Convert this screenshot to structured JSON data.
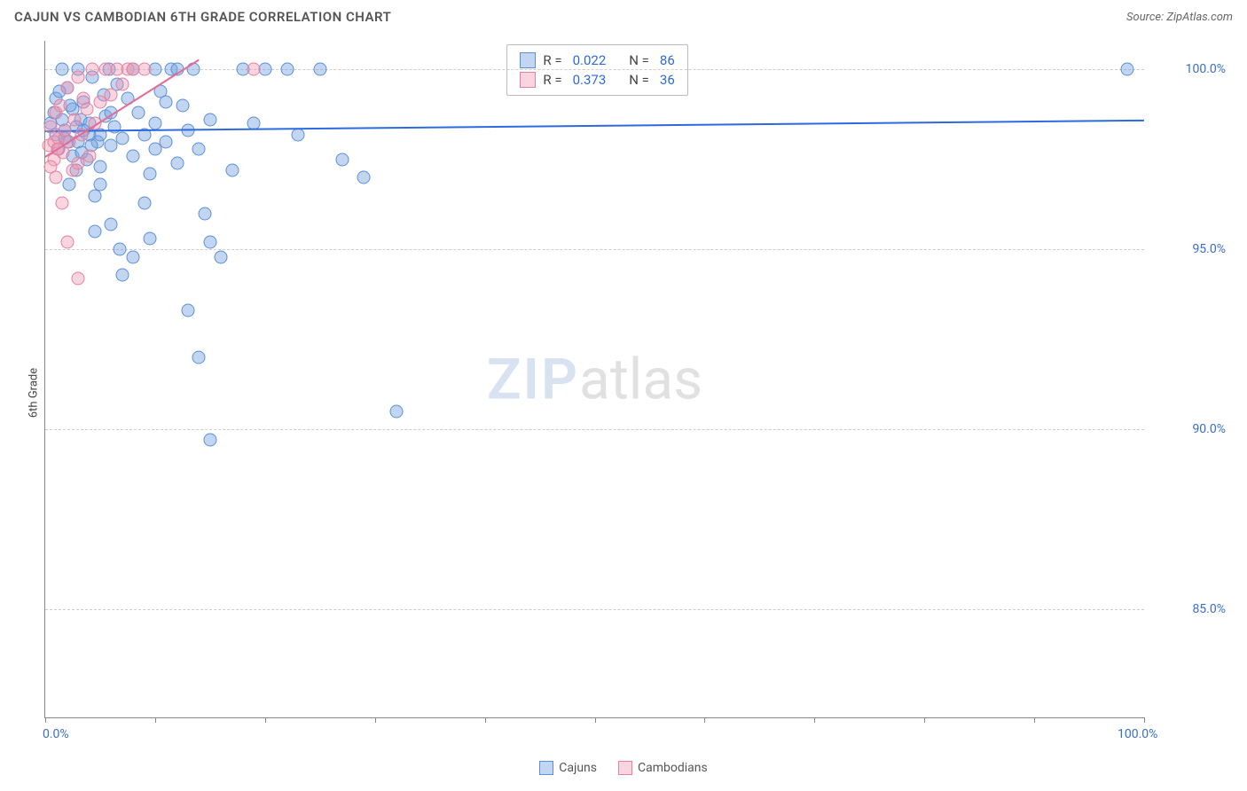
{
  "header": {
    "title": "CAJUN VS CAMBODIAN 6TH GRADE CORRELATION CHART",
    "source": "Source: ZipAtlas.com"
  },
  "chart": {
    "type": "scatter",
    "ylabel": "6th Grade",
    "watermark_zip": "ZIP",
    "watermark_atlas": "atlas",
    "background_color": "#ffffff",
    "grid_color": "#cccccc",
    "axis_color": "#888888",
    "xlim": [
      0,
      100
    ],
    "ylim": [
      82,
      100.8
    ],
    "xticks": [
      0,
      10,
      20,
      30,
      40,
      50,
      60,
      70,
      80,
      90,
      100
    ],
    "x_start_label": "0.0%",
    "x_end_label": "100.0%",
    "yticks": [
      {
        "v": 100,
        "label": "100.0%"
      },
      {
        "v": 95,
        "label": "95.0%"
      },
      {
        "v": 90,
        "label": "90.0%"
      },
      {
        "v": 85,
        "label": "85.0%"
      }
    ],
    "series": [
      {
        "name": "Cajuns",
        "fill": "rgba(120,165,225,0.45)",
        "stroke": "#5b8fd6",
        "line_color": "#2d6ae0",
        "trend": {
          "x1": 0,
          "y1": 98.3,
          "x2": 100,
          "y2": 98.6
        },
        "R_label": "R = ",
        "R": "0.022",
        "N_label": "N = ",
        "N": "86",
        "points": [
          [
            0.5,
            98.5
          ],
          [
            1,
            99.2
          ],
          [
            1.2,
            97.8
          ],
          [
            1.5,
            100
          ],
          [
            1.8,
            98.3
          ],
          [
            2,
            99.5
          ],
          [
            2.2,
            96.8
          ],
          [
            2.5,
            98.9
          ],
          [
            2.8,
            97.2
          ],
          [
            3,
            100
          ],
          [
            3.2,
            98.6
          ],
          [
            3.5,
            99.1
          ],
          [
            3.8,
            97.5
          ],
          [
            4,
            98.2
          ],
          [
            4.3,
            99.8
          ],
          [
            4.5,
            96.5
          ],
          [
            4.8,
            98.0
          ],
          [
            5,
            97.3
          ],
          [
            5.3,
            99.3
          ],
          [
            5.5,
            98.7
          ],
          [
            5.8,
            100
          ],
          [
            6,
            97.9
          ],
          [
            6.3,
            98.4
          ],
          [
            6.5,
            99.6
          ],
          [
            4.5,
            95.5
          ],
          [
            6,
            95.7
          ],
          [
            6.8,
            95.0
          ],
          [
            7,
            98.1
          ],
          [
            7.5,
            99.2
          ],
          [
            8,
            100
          ],
          [
            8,
            97.6
          ],
          [
            8.5,
            98.8
          ],
          [
            9,
            96.3
          ],
          [
            9.5,
            97.1
          ],
          [
            10,
            100
          ],
          [
            10,
            98.5
          ],
          [
            10.5,
            99.4
          ],
          [
            11,
            98.0
          ],
          [
            11.5,
            100
          ],
          [
            12,
            97.4
          ],
          [
            12,
            100
          ],
          [
            12.5,
            99.0
          ],
          [
            13,
            98.3
          ],
          [
            13.5,
            100
          ],
          [
            14,
            97.8
          ],
          [
            14.5,
            96.0
          ],
          [
            15,
            95.2
          ],
          [
            15,
            98.6
          ],
          [
            13,
            93.3
          ],
          [
            14,
            92.0
          ],
          [
            15,
            89.7
          ],
          [
            16,
            94.8
          ],
          [
            17,
            97.2
          ],
          [
            18,
            100
          ],
          [
            19,
            98.5
          ],
          [
            20,
            100
          ],
          [
            22,
            100
          ],
          [
            23,
            98.2
          ],
          [
            25,
            100
          ],
          [
            27,
            97.5
          ],
          [
            29,
            97.0
          ],
          [
            32,
            90.5
          ],
          [
            7,
            94.3
          ],
          [
            8,
            94.8
          ],
          [
            3,
            98.0
          ],
          [
            4,
            98.5
          ],
          [
            5,
            98.2
          ],
          [
            6,
            98.8
          ],
          [
            2,
            98.0
          ],
          [
            2.5,
            97.6
          ],
          [
            3.5,
            98.3
          ],
          [
            4.2,
            97.9
          ],
          [
            1,
            98.2
          ],
          [
            1.5,
            98.6
          ],
          [
            2.3,
            99.0
          ],
          [
            2.8,
            98.4
          ],
          [
            3.3,
            97.7
          ],
          [
            0.8,
            98.8
          ],
          [
            1.3,
            99.4
          ],
          [
            1.8,
            98.1
          ],
          [
            9,
            98.2
          ],
          [
            10,
            97.8
          ],
          [
            11,
            99.1
          ],
          [
            98.5,
            100
          ],
          [
            9.5,
            95.3
          ],
          [
            5,
            96.8
          ]
        ]
      },
      {
        "name": "Cambodians",
        "fill": "rgba(240,150,175,0.40)",
        "stroke": "#e77fa0",
        "line_color": "#e66b94",
        "trend": {
          "x1": 0,
          "y1": 97.6,
          "x2": 14,
          "y2": 100.3
        },
        "R_label": "R = ",
        "R": "0.373",
        "N_label": "N = ",
        "N": "36",
        "points": [
          [
            0.3,
            97.9
          ],
          [
            0.5,
            98.4
          ],
          [
            0.8,
            97.5
          ],
          [
            1,
            98.8
          ],
          [
            1.2,
            98.1
          ],
          [
            1.4,
            99.0
          ],
          [
            1.6,
            97.7
          ],
          [
            1.8,
            98.3
          ],
          [
            2,
            99.5
          ],
          [
            2.2,
            98.0
          ],
          [
            2.5,
            97.2
          ],
          [
            2.7,
            98.6
          ],
          [
            3,
            99.8
          ],
          [
            3,
            97.4
          ],
          [
            3.3,
            98.2
          ],
          [
            3.5,
            99.2
          ],
          [
            3.8,
            98.9
          ],
          [
            4,
            97.6
          ],
          [
            4.3,
            100
          ],
          [
            4.5,
            98.5
          ],
          [
            5,
            99.1
          ],
          [
            5.5,
            100
          ],
          [
            6,
            99.3
          ],
          [
            6.5,
            100
          ],
          [
            7,
            99.6
          ],
          [
            7.5,
            100
          ],
          [
            8,
            100
          ],
          [
            9,
            100
          ],
          [
            19,
            100
          ],
          [
            1,
            97.0
          ],
          [
            1.5,
            96.3
          ],
          [
            2,
            95.2
          ],
          [
            3,
            94.2
          ],
          [
            0.5,
            97.3
          ],
          [
            0.8,
            98.0
          ],
          [
            1.1,
            97.8
          ]
        ]
      }
    ],
    "bottom_legend": [
      {
        "label": "Cajuns",
        "fill": "rgba(120,165,225,0.45)",
        "stroke": "#5b8fd6"
      },
      {
        "label": "Cambodians",
        "fill": "rgba(240,150,175,0.40)",
        "stroke": "#e77fa0"
      }
    ]
  }
}
